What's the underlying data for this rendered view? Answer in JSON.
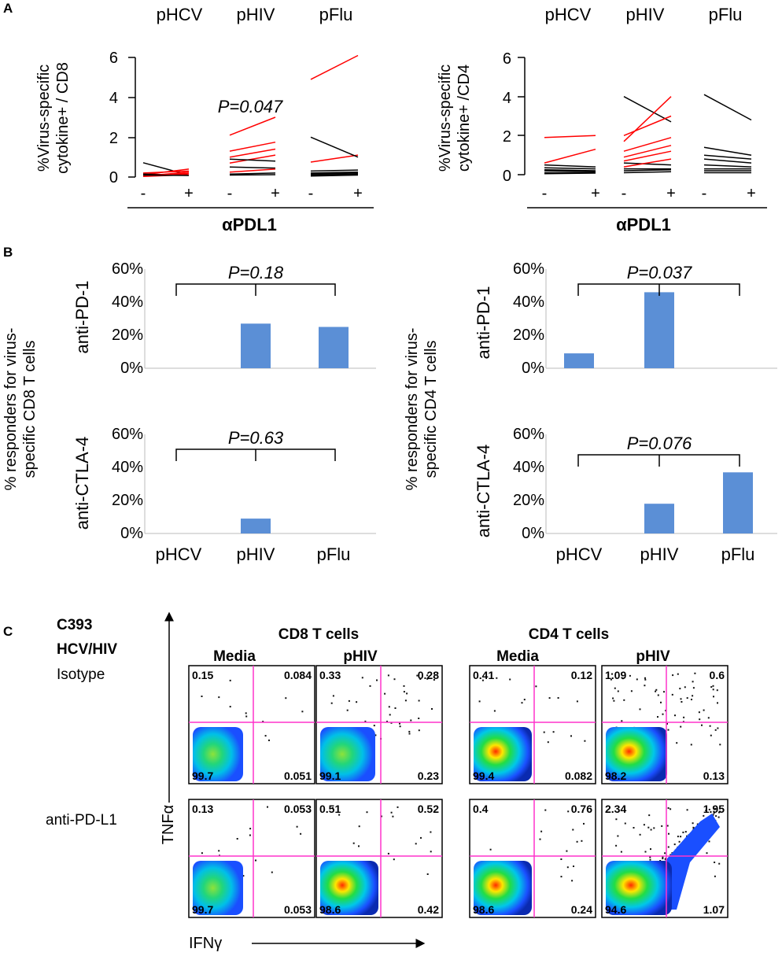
{
  "panel_labels": {
    "a": "A",
    "b": "B",
    "c": "C"
  },
  "colors": {
    "up": "#ff0000",
    "down": "#000000",
    "bar": "#5b8fd6",
    "quad": "#ff33cc"
  },
  "chart_data": [
    {
      "id": "A_CD8",
      "type": "line",
      "categories": [
        "pHCV",
        "pHIV",
        "pFlu"
      ],
      "ylabel_lines": [
        "%Virus-specific",
        "cytokine+ / CD8"
      ],
      "yticks": [
        "0",
        "2",
        "4",
        "6"
      ],
      "ylim": [
        0,
        6
      ],
      "xtick_labels": [
        "-",
        "+",
        "-",
        "+",
        "-",
        "+"
      ],
      "xlabel": "αPDL1",
      "annotation": "P=0.047",
      "groups": [
        {
          "pairs": [
            [
              0.72,
              0.1
            ],
            [
              0.12,
              0.4
            ],
            [
              0.2,
              0.3
            ],
            [
              0.05,
              0.25
            ],
            [
              0.15,
              0.1
            ],
            [
              0.03,
              0.12
            ],
            [
              0.08,
              0.18
            ],
            [
              0.1,
              0.08
            ]
          ]
        },
        {
          "pairs": [
            [
              2.1,
              3.0
            ],
            [
              1.3,
              1.75
            ],
            [
              1.0,
              1.4
            ],
            [
              0.7,
              1.1
            ],
            [
              0.9,
              0.8
            ],
            [
              0.5,
              0.45
            ],
            [
              0.25,
              0.4
            ],
            [
              0.15,
              0.2
            ],
            [
              0.1,
              0.12
            ]
          ]
        },
        {
          "pairs": [
            [
              4.9,
              6.1
            ],
            [
              0.75,
              1.1
            ],
            [
              2.0,
              1.0
            ],
            [
              0.3,
              0.35
            ],
            [
              0.2,
              0.25
            ],
            [
              0.15,
              0.2
            ],
            [
              0.1,
              0.15
            ],
            [
              0.05,
              0.1
            ]
          ]
        }
      ]
    },
    {
      "id": "A_CD4",
      "type": "line",
      "categories": [
        "pHCV",
        "pHIV",
        "pFlu"
      ],
      "ylabel_lines": [
        "%Virus-specific",
        "cytokine+ /CD4"
      ],
      "yticks": [
        "0",
        "2",
        "4",
        "6"
      ],
      "ylim": [
        0,
        6
      ],
      "xtick_labels": [
        "-",
        "+",
        "-",
        "+",
        "-",
        "+"
      ],
      "xlabel": "αPDL1",
      "annotation": "",
      "groups": [
        {
          "pairs": [
            [
              1.9,
              2.0
            ],
            [
              0.6,
              1.3
            ],
            [
              0.5,
              0.4
            ],
            [
              0.35,
              0.3
            ],
            [
              0.25,
              0.2
            ],
            [
              0.2,
              0.15
            ],
            [
              0.1,
              0.1
            ],
            [
              0.05,
              0.08
            ]
          ]
        },
        {
          "pairs": [
            [
              4.0,
              2.7
            ],
            [
              1.7,
              4.0
            ],
            [
              2.0,
              3.0
            ],
            [
              1.2,
              1.9
            ],
            [
              0.9,
              1.5
            ],
            [
              0.7,
              1.2
            ],
            [
              0.6,
              0.5
            ],
            [
              0.4,
              0.8
            ],
            [
              0.3,
              0.3
            ],
            [
              0.2,
              0.25
            ],
            [
              0.1,
              0.15
            ]
          ]
        },
        {
          "pairs": [
            [
              4.1,
              2.8
            ],
            [
              1.4,
              1.0
            ],
            [
              1.0,
              0.8
            ],
            [
              0.8,
              0.6
            ],
            [
              0.5,
              0.4
            ],
            [
              0.3,
              0.3
            ],
            [
              0.2,
              0.2
            ],
            [
              0.1,
              0.1
            ]
          ]
        }
      ]
    },
    {
      "id": "B_CD8_PD1",
      "type": "bar",
      "categories": [
        "pHCV",
        "pHIV",
        "pFlu"
      ],
      "values": [
        0,
        27,
        25
      ],
      "yticks": [
        "0%",
        "20%",
        "40%",
        "60%"
      ],
      "ylim": [
        0,
        60
      ],
      "side_label": "anti-PD-1",
      "annotation": "P=0.18",
      "show_xticks": false
    },
    {
      "id": "B_CD8_CTLA4",
      "type": "bar",
      "categories": [
        "pHCV",
        "pHIV",
        "pFlu"
      ],
      "values": [
        0,
        9,
        0
      ],
      "yticks": [
        "0%",
        "20%",
        "40%",
        "60%"
      ],
      "ylim": [
        0,
        60
      ],
      "side_label": "anti-CTLA-4",
      "annotation": "P=0.63",
      "show_xticks": true
    },
    {
      "id": "B_CD4_PD1",
      "type": "bar",
      "categories": [
        "pHCV",
        "pHIV",
        "pFlu"
      ],
      "values": [
        9,
        46,
        0
      ],
      "yticks": [
        "0%",
        "20%",
        "40%",
        "60%"
      ],
      "ylim": [
        0,
        60
      ],
      "side_label": "anti-PD-1",
      "annotation": "P=0.037",
      "show_xticks": false
    },
    {
      "id": "B_CD4_CTLA4",
      "type": "bar",
      "categories": [
        "pHCV",
        "pHIV",
        "pFlu"
      ],
      "values": [
        0,
        18,
        37
      ],
      "yticks": [
        "0%",
        "20%",
        "40%",
        "60%"
      ],
      "ylim": [
        0,
        60
      ],
      "side_label": "anti-CTLA-4",
      "annotation": "P=0.076",
      "show_xticks": true
    }
  ],
  "panel_b": {
    "ylabel_cd8": [
      "% responders for virus-",
      "specific CD8 T cells"
    ],
    "ylabel_cd4": [
      "% responders for virus-",
      "specific CD4 T cells"
    ]
  },
  "panel_c": {
    "patient": "C393",
    "patient_sub": "HCV/HIV",
    "group_cd8": "CD8 T cells",
    "group_cd4": "CD4 T cells",
    "col_headers": [
      "Media",
      "pHIV",
      "Media",
      "pHIV"
    ],
    "row_labels": [
      "Isotype",
      "anti-PD-L1"
    ],
    "y_axis": "TNFα",
    "x_axis": "IFNγ",
    "plots": [
      {
        "ul": "0.15",
        "ur": "0.084",
        "ll": "99.7",
        "lr": "0.051",
        "level": 0
      },
      {
        "ul": "0.33",
        "ur": "0.28",
        "ll": "99.1",
        "lr": "0.23",
        "level": 1
      },
      {
        "ul": "0.41",
        "ur": "0.12",
        "ll": "99.4",
        "lr": "0.082",
        "level": 2
      },
      {
        "ul": "1.09",
        "ur": "0.6",
        "ll": "98.2",
        "lr": "0.13",
        "level": 3
      },
      {
        "ul": "0.13",
        "ur": "0.053",
        "ll": "99.7",
        "lr": "0.053",
        "level": 0
      },
      {
        "ul": "0.51",
        "ur": "0.52",
        "ll": "98.6",
        "lr": "0.42",
        "level": 2
      },
      {
        "ul": "0.4",
        "ur": "0.76",
        "ll": "98.6",
        "lr": "0.24",
        "level": 2
      },
      {
        "ul": "2.34",
        "ur": "1.95",
        "ll": "94.6",
        "lr": "1.07",
        "level": 4
      }
    ]
  }
}
